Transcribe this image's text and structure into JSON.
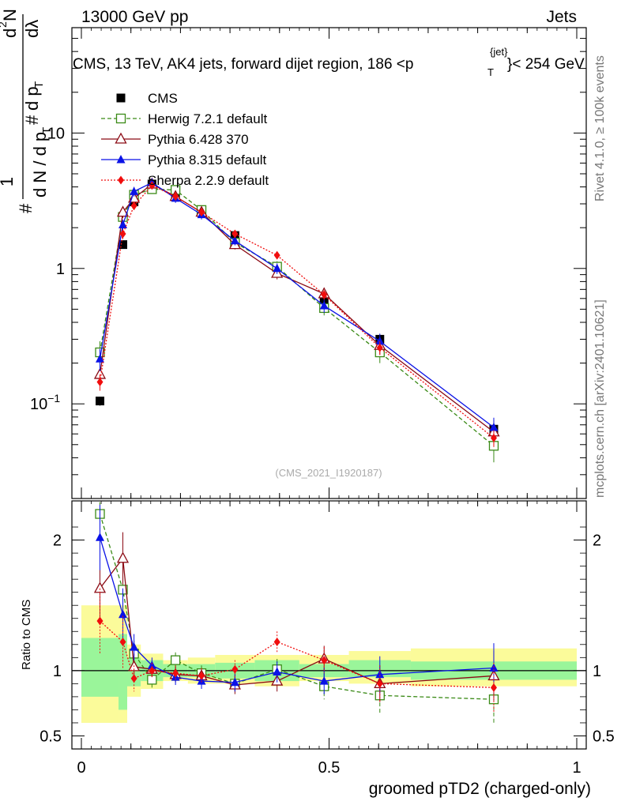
{
  "header": {
    "energy": "13000 GeV pp",
    "category": "Jets",
    "title": "CMS, 13 TeV, AK4 jets, forward dijet region, 186 <p",
    "title_sup": "{jet}",
    "title_sub": "T",
    "title_end": "}< 254 GeV"
  },
  "side": {
    "rivet": "Rivet 4.1.0, ≥ 100k events",
    "mcplots": "mcplots.cern.ch [arXiv:2401.10621]"
  },
  "watermark": "(CMS_2021_I1920187)",
  "ratio_ylabel": "Ratio to CMS",
  "ylabel_parts": [
    "#",
    "1",
    "d N / d p",
    "T",
    "#",
    "d p",
    "T",
    "d",
    "2",
    "N",
    "dλ"
  ],
  "colors": {
    "cms": "#000000",
    "herwig": "#3a8a16",
    "py6": "#8b0a14",
    "py8": "#0a12e6",
    "sherpa": "#f00d0d",
    "band_inner": "#9af59a",
    "band_outer": "#fbfb9a"
  },
  "chart_data": {
    "type": "line",
    "x_label": "groomed pTD2 (charged-only)",
    "x_ticks": [
      "0",
      "0.5",
      "1"
    ],
    "xlim": [
      0,
      1
    ],
    "main": {
      "yscale": "log",
      "ylim": [
        0.02,
        60
      ],
      "y_ticks": [
        {
          "v": 0.1,
          "label": "10",
          "sup": "−1"
        },
        {
          "v": 1,
          "label": "1",
          "sup": ""
        },
        {
          "v": 10,
          "label": "10",
          "sup": ""
        }
      ]
    },
    "ratio": {
      "ylim": [
        0.4,
        2.3
      ],
      "y_ticks": [
        {
          "v": 0.5,
          "label": "0.5"
        },
        {
          "v": 1,
          "label": "1"
        },
        {
          "v": 2,
          "label": "2"
        }
      ]
    },
    "bin_edges": [
      0,
      0.075,
      0.0925,
      0.12,
      0.165,
      0.215,
      0.27,
      0.35,
      0.44,
      0.54,
      0.665,
      1
    ],
    "bands": {
      "inner": [
        [
          0.8,
          1.25
        ],
        [
          0.7,
          1.28
        ],
        [
          0.88,
          1.1
        ],
        [
          0.92,
          1.08
        ],
        [
          0.95,
          1.05
        ],
        [
          0.95,
          1.05
        ],
        [
          0.94,
          1.06
        ],
        [
          0.92,
          1.08
        ],
        [
          0.95,
          1.05
        ],
        [
          0.95,
          1.08
        ],
        [
          0.93,
          1.07
        ]
      ],
      "outer": [
        [
          0.6,
          1.5
        ],
        [
          0.6,
          1.5
        ],
        [
          0.8,
          1.2
        ],
        [
          0.86,
          1.13
        ],
        [
          0.92,
          1.08
        ],
        [
          0.9,
          1.1
        ],
        [
          0.9,
          1.12
        ],
        [
          0.88,
          1.12
        ],
        [
          0.92,
          1.12
        ],
        [
          0.9,
          1.15
        ],
        [
          0.88,
          1.17
        ]
      ]
    },
    "series": [
      {
        "name": "CMS",
        "key": "cms",
        "style": "solid",
        "marker": "square-filled",
        "x": [
          0.0375,
          0.08375,
          0.10625,
          0.1425,
          0.19,
          0.2425,
          0.31,
          0.395,
          0.49,
          0.6025,
          0.8325
        ],
        "y": [
          0.105,
          1.5,
          3.1,
          4.2,
          3.5,
          2.7,
          1.75,
          1.02,
          0.58,
          0.3,
          0.065
        ],
        "yerr": [
          0.008,
          0.08,
          0.15,
          0.2,
          0.17,
          0.14,
          0.09,
          0.06,
          0.04,
          0.025,
          0.007
        ],
        "ratio": null,
        "ratio_err": null
      },
      {
        "name": "Herwig 7.2.1 default",
        "key": "herwig",
        "style": "dashed",
        "marker": "square-open",
        "x": [
          0.0375,
          0.08375,
          0.10625,
          0.1425,
          0.19,
          0.2425,
          0.31,
          0.395,
          0.49,
          0.6025,
          0.8325
        ],
        "y": [
          0.24,
          2.4,
          3.5,
          3.85,
          3.8,
          2.7,
          1.55,
          1.03,
          0.51,
          0.24,
          0.049
        ],
        "yerr": [
          0.05,
          0.3,
          0.3,
          0.3,
          0.3,
          0.2,
          0.12,
          0.1,
          0.06,
          0.04,
          0.012
        ],
        "ratio": [
          2.2,
          1.62,
          1.13,
          0.93,
          1.08,
          0.98,
          0.9,
          1.01,
          0.88,
          0.81,
          0.78
        ],
        "ratio_err": [
          0.25,
          0.2,
          0.1,
          0.06,
          0.06,
          0.06,
          0.07,
          0.08,
          0.1,
          0.14,
          0.19
        ]
      },
      {
        "name": "Pythia 6.428 370",
        "key": "py6",
        "style": "solid",
        "marker": "triangle-open",
        "x": [
          0.0375,
          0.08375,
          0.10625,
          0.1425,
          0.19,
          0.2425,
          0.31,
          0.395,
          0.49,
          0.6025,
          0.8325
        ],
        "y": [
          0.165,
          2.6,
          3.3,
          4.2,
          3.4,
          2.6,
          1.5,
          0.92,
          0.65,
          0.27,
          0.062
        ],
        "yerr": [
          0.03,
          0.25,
          0.3,
          0.3,
          0.25,
          0.2,
          0.12,
          0.09,
          0.07,
          0.04,
          0.012
        ],
        "ratio": [
          1.63,
          1.86,
          1.03,
          1.01,
          0.97,
          0.96,
          0.89,
          0.92,
          1.09,
          0.9,
          0.96
        ],
        "ratio_err": [
          0.25,
          0.2,
          0.1,
          0.06,
          0.06,
          0.06,
          0.07,
          0.08,
          0.1,
          0.14,
          0.19
        ]
      },
      {
        "name": "Pythia 8.315 default",
        "key": "py8",
        "style": "solid",
        "marker": "triangle-filled",
        "x": [
          0.0375,
          0.08375,
          0.10625,
          0.1425,
          0.19,
          0.2425,
          0.31,
          0.395,
          0.49,
          0.6025,
          0.8325
        ],
        "y": [
          0.215,
          2.1,
          3.7,
          4.3,
          3.3,
          2.5,
          1.6,
          1.0,
          0.53,
          0.29,
          0.067
        ],
        "yerr": [
          0.04,
          0.2,
          0.3,
          0.3,
          0.25,
          0.2,
          0.12,
          0.09,
          0.06,
          0.04,
          0.012
        ],
        "ratio": [
          2.02,
          1.43,
          1.18,
          1.04,
          0.95,
          0.92,
          0.91,
          0.99,
          0.92,
          0.97,
          1.02
        ],
        "ratio_err": [
          0.25,
          0.2,
          0.1,
          0.06,
          0.06,
          0.06,
          0.07,
          0.08,
          0.1,
          0.14,
          0.19
        ]
      },
      {
        "name": "Sherpa 2.2.9 default",
        "key": "sherpa",
        "style": "dotted",
        "marker": "diamond-filled",
        "x": [
          0.0375,
          0.08375,
          0.10625,
          0.1425,
          0.19,
          0.2425,
          0.31,
          0.395,
          0.49,
          0.6025,
          0.8325
        ],
        "y": [
          0.145,
          1.8,
          2.9,
          4.1,
          3.4,
          2.6,
          1.8,
          1.25,
          0.64,
          0.26,
          0.056
        ],
        "yerr": [
          0.02,
          0.15,
          0.2,
          0.25,
          0.2,
          0.15,
          0.1,
          0.08,
          0.05,
          0.03,
          0.008
        ],
        "ratio": [
          1.38,
          1.22,
          0.94,
          1.0,
          0.98,
          0.96,
          1.01,
          1.22,
          1.08,
          0.9,
          0.87
        ],
        "ratio_err": [
          0.25,
          0.2,
          0.1,
          0.06,
          0.06,
          0.06,
          0.07,
          0.08,
          0.1,
          0.14,
          0.19
        ]
      }
    ]
  }
}
